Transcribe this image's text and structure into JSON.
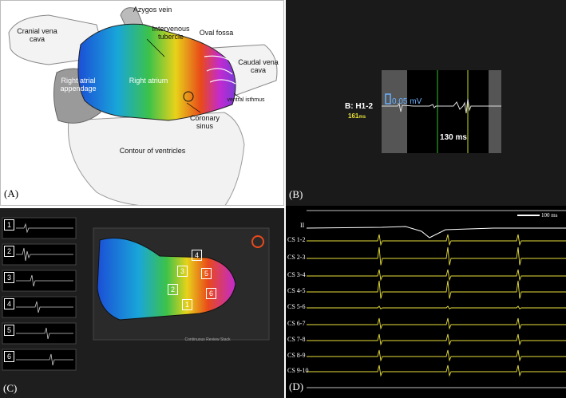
{
  "panelA": {
    "label": "(A)",
    "annotations": {
      "azygos": "Azygos vein",
      "intervenous": "Intervenous tubercle",
      "cranial": "Cranial vena cava",
      "oval": "Oval fossa",
      "caudal": "Caudal vena cava",
      "right_atrium": "Right atrium",
      "appendage": "Right atrial appendage",
      "ventral": "ventral isthmus",
      "coronary": "Coronary sinus",
      "ventricles": "Contour of ventricles"
    }
  },
  "panelB": {
    "label": "(B)",
    "channel": "B: H1-2",
    "time_label": "161",
    "time_unit": "ms",
    "amplitude": "0.05 mV",
    "interval": "130 ms"
  },
  "panelC": {
    "label": "(C)",
    "numbers": [
      "1",
      "2",
      "3",
      "4",
      "5",
      "6"
    ],
    "map_bottom": "Continuous Review Stack"
  },
  "panelD": {
    "label": "(D)",
    "scale": "100 ms",
    "channels": [
      "II",
      "CS 1-2",
      "CS 2-3",
      "CS 3-4",
      "CS 4-5",
      "CS 5-6",
      "CS 6-7",
      "CS 7-8",
      "CS 8-9",
      "CS 9-10"
    ]
  }
}
